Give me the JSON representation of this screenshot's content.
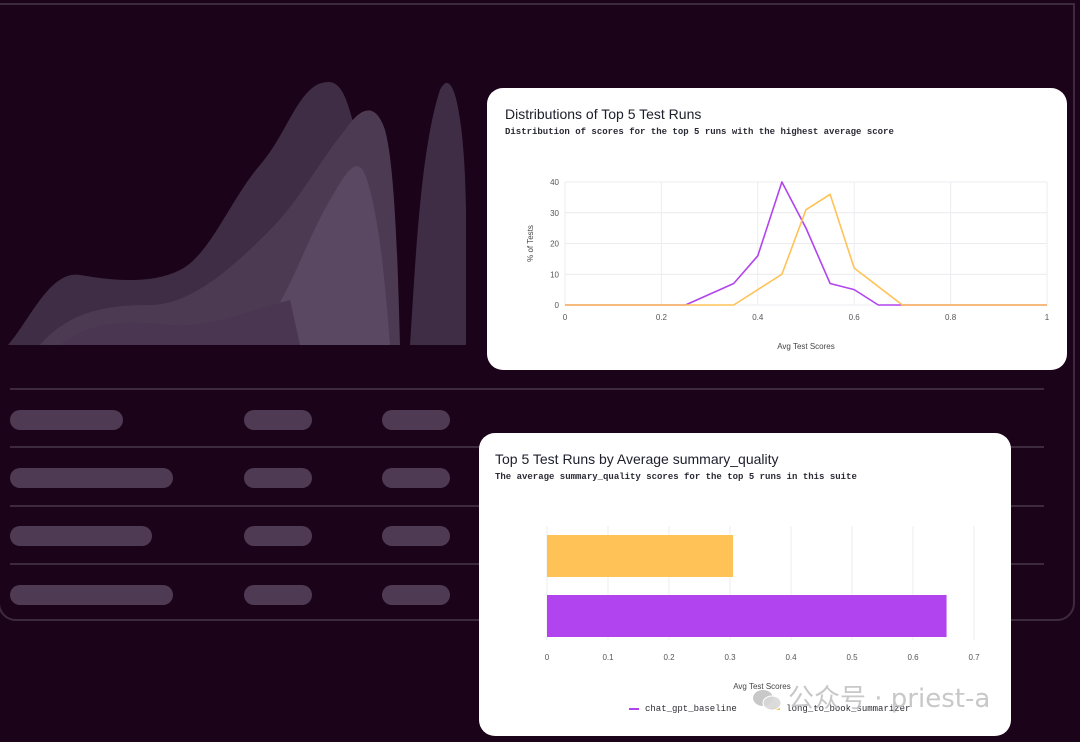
{
  "colors": {
    "background": "#1b0319",
    "purple": "#b144ee",
    "orange": "#ffc256",
    "placeholder": "#4f3a54"
  },
  "distribution_card": {
    "title": "Distributions of Top 5 Test Runs",
    "subtitle": "Distribution of scores for the top 5 runs with the highest average score"
  },
  "bar_card": {
    "title": "Top 5 Test Runs by Average summary_quality",
    "subtitle": "The average summary_quality scores for the top 5 runs in this suite"
  },
  "chart_data": [
    {
      "type": "line",
      "title": "Distributions of Top 5 Test Runs",
      "xlabel": "Avg Test Scores",
      "ylabel": "% of Tests",
      "xlim": [
        0,
        1
      ],
      "ylim": [
        0,
        40
      ],
      "xticks": [
        "0",
        "0.2",
        "0.4",
        "0.6",
        "0.8",
        "1"
      ],
      "yticks": [
        "0",
        "10",
        "20",
        "30",
        "40"
      ],
      "grid": true,
      "series": [
        {
          "color": "#b144ee",
          "x": [
            0,
            0.25,
            0.35,
            0.4,
            0.45,
            0.5,
            0.55,
            0.6,
            0.65,
            0.7,
            1
          ],
          "y": [
            0,
            0,
            7,
            16,
            40,
            25,
            7,
            5,
            0,
            0,
            0
          ]
        },
        {
          "color": "#ffc256",
          "x": [
            0,
            0.35,
            0.45,
            0.5,
            0.55,
            0.6,
            0.7,
            1
          ],
          "y": [
            0,
            0,
            10,
            31,
            36,
            12,
            0,
            0
          ]
        }
      ]
    },
    {
      "type": "bar",
      "orientation": "horizontal",
      "title": "Top 5 Test Runs by Average summary_quality",
      "xlabel": "Avg Test Scores",
      "xlim": [
        0,
        0.7
      ],
      "xticks": [
        "0",
        "0.1",
        "0.2",
        "0.3",
        "0.4",
        "0.5",
        "0.6",
        "0.7"
      ],
      "grid": true,
      "legend_position": "bottom",
      "series": [
        {
          "name": "long_to_book_summarizer",
          "color": "#ffc256",
          "value": 0.305
        },
        {
          "name": "chat_gpt_baseline",
          "color": "#b144ee",
          "value": 0.655
        }
      ]
    }
  ],
  "watermark": {
    "text": "公众号 · priest-a"
  }
}
